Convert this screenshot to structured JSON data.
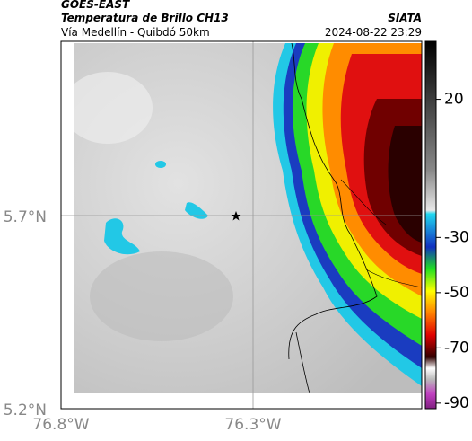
{
  "header": {
    "title": "GOES-EAST",
    "subtitle": "Temperatura de Brillo CH13",
    "source": "SIATA",
    "region": "Vía Medellín - Quibdó 50km",
    "datetime": "2024-08-22 23:29"
  },
  "axes": {
    "x_ticks": [
      "76.8°W",
      "76.3°W"
    ],
    "y_ticks": [
      "5.7°N",
      "5.2°N"
    ]
  },
  "colorbar": {
    "range": [
      -92,
      41
    ],
    "ticks": [
      20,
      -30,
      -50,
      -70,
      -90
    ]
  }
}
